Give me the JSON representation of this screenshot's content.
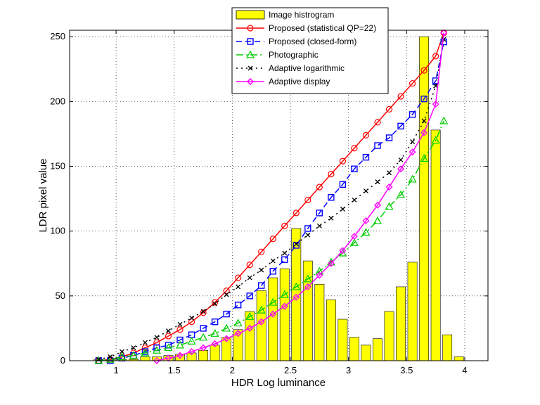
{
  "chart_data": {
    "type": "bar+line",
    "xlabel": "HDR Log luminance",
    "ylabel": "LDR pixel value",
    "xlim": [
      0.6,
      4.2
    ],
    "ylim": [
      0,
      255
    ],
    "xticks": [
      1,
      1.5,
      2,
      2.5,
      3,
      3.5,
      4
    ],
    "yticks": [
      0,
      50,
      100,
      150,
      200,
      250
    ],
    "grid": true,
    "legend_position": "top-center",
    "histogram": {
      "name": "Image histrogram",
      "color": "#ffff00",
      "edge_color": "#000000",
      "bin_width": 0.1,
      "x": [
        0.85,
        0.95,
        1.05,
        1.15,
        1.25,
        1.35,
        1.45,
        1.55,
        1.65,
        1.75,
        1.85,
        1.95,
        2.05,
        2.15,
        2.25,
        2.35,
        2.45,
        2.55,
        2.65,
        2.75,
        2.85,
        2.95,
        3.05,
        3.15,
        3.25,
        3.35,
        3.45,
        3.55,
        3.65,
        3.75,
        3.85,
        3.95
      ],
      "values": [
        1,
        1,
        1,
        1,
        3,
        3,
        4,
        5,
        6,
        8,
        12,
        18,
        24,
        38,
        54,
        64,
        71,
        102,
        77,
        59,
        47,
        32,
        18,
        12,
        17,
        38,
        57,
        76,
        250,
        178,
        20,
        3
      ]
    },
    "series": [
      {
        "name": "Proposed (statistical QP=22)",
        "color": "#ff0000",
        "dash": "",
        "marker": "circle",
        "x": [
          0.85,
          0.95,
          1.05,
          1.15,
          1.25,
          1.35,
          1.45,
          1.55,
          1.65,
          1.75,
          1.85,
          1.95,
          2.05,
          2.15,
          2.25,
          2.35,
          2.45,
          2.55,
          2.65,
          2.75,
          2.85,
          2.95,
          3.05,
          3.15,
          3.25,
          3.35,
          3.45,
          3.55,
          3.65,
          3.75,
          3.82
        ],
        "values": [
          0,
          1,
          3,
          6,
          10,
          14,
          19,
          24,
          30,
          37,
          45,
          54,
          64,
          74,
          84,
          94,
          104,
          114,
          124,
          134,
          144,
          154,
          164,
          174,
          184,
          194,
          204,
          214,
          224,
          235,
          253
        ]
      },
      {
        "name": "Proposed (closed-form)",
        "color": "#0000ff",
        "dash": "8,5",
        "marker": "square",
        "x": [
          0.85,
          0.95,
          1.05,
          1.15,
          1.25,
          1.35,
          1.45,
          1.55,
          1.65,
          1.75,
          1.85,
          1.95,
          2.05,
          2.15,
          2.25,
          2.35,
          2.45,
          2.55,
          2.65,
          2.75,
          2.85,
          2.95,
          3.05,
          3.15,
          3.25,
          3.35,
          3.45,
          3.55,
          3.65,
          3.75,
          3.82
        ],
        "values": [
          0,
          0,
          2,
          4,
          7,
          10,
          12,
          16,
          20,
          25,
          30,
          36,
          43,
          50,
          58,
          69,
          78,
          89,
          102,
          114,
          126,
          136,
          148,
          157,
          166,
          172,
          181,
          190,
          202,
          216,
          246
        ]
      },
      {
        "name": "Photographic",
        "color": "#00cc00",
        "dash": "10,4,2,4",
        "marker": "triangle",
        "x": [
          0.85,
          0.95,
          1.05,
          1.15,
          1.25,
          1.35,
          1.45,
          1.55,
          1.65,
          1.75,
          1.85,
          1.95,
          2.05,
          2.15,
          2.25,
          2.35,
          2.45,
          2.55,
          2.65,
          2.75,
          2.85,
          2.95,
          3.05,
          3.15,
          3.25,
          3.35,
          3.45,
          3.55,
          3.65,
          3.75,
          3.82
        ],
        "values": [
          0,
          1,
          3,
          4,
          6,
          8,
          10,
          12,
          15,
          18,
          21,
          25,
          29,
          34,
          39,
          45,
          51,
          57,
          63,
          69,
          76,
          83,
          91,
          99,
          108,
          119,
          128,
          140,
          156,
          170,
          185
        ]
      },
      {
        "name": "Adaptive logarithmic",
        "color": "#000000",
        "dash": "2,5",
        "marker": "x",
        "x": [
          0.85,
          0.95,
          1.05,
          1.15,
          1.25,
          1.35,
          1.45,
          1.55,
          1.65,
          1.75,
          1.85,
          1.95,
          2.05,
          2.15,
          2.25,
          2.35,
          2.45,
          2.55,
          2.65,
          2.75,
          2.85,
          2.95,
          3.05,
          3.15,
          3.25,
          3.35,
          3.45,
          3.55,
          3.65,
          3.75,
          3.82
        ],
        "values": [
          1,
          3,
          7,
          10,
          14,
          18,
          23,
          28,
          33,
          38,
          44,
          51,
          57,
          64,
          70,
          77,
          83,
          90,
          97,
          104,
          110,
          117,
          124,
          131,
          138,
          145,
          155,
          169,
          185,
          212,
          248
        ]
      },
      {
        "name": "Adaptive display",
        "color": "#ff00ff",
        "dash": "",
        "marker": "diamond",
        "x": [
          1.35,
          1.45,
          1.55,
          1.65,
          1.75,
          1.85,
          1.95,
          2.05,
          2.15,
          2.25,
          2.35,
          2.45,
          2.55,
          2.65,
          2.75,
          2.85,
          2.95,
          3.05,
          3.15,
          3.25,
          3.35,
          3.45,
          3.55,
          3.65,
          3.75,
          3.82
        ],
        "values": [
          0,
          2,
          4,
          7,
          10,
          13,
          17,
          21,
          25,
          30,
          36,
          42,
          49,
          57,
          66,
          75,
          85,
          96,
          108,
          120,
          134,
          148,
          161,
          176,
          198,
          253
        ]
      }
    ]
  }
}
